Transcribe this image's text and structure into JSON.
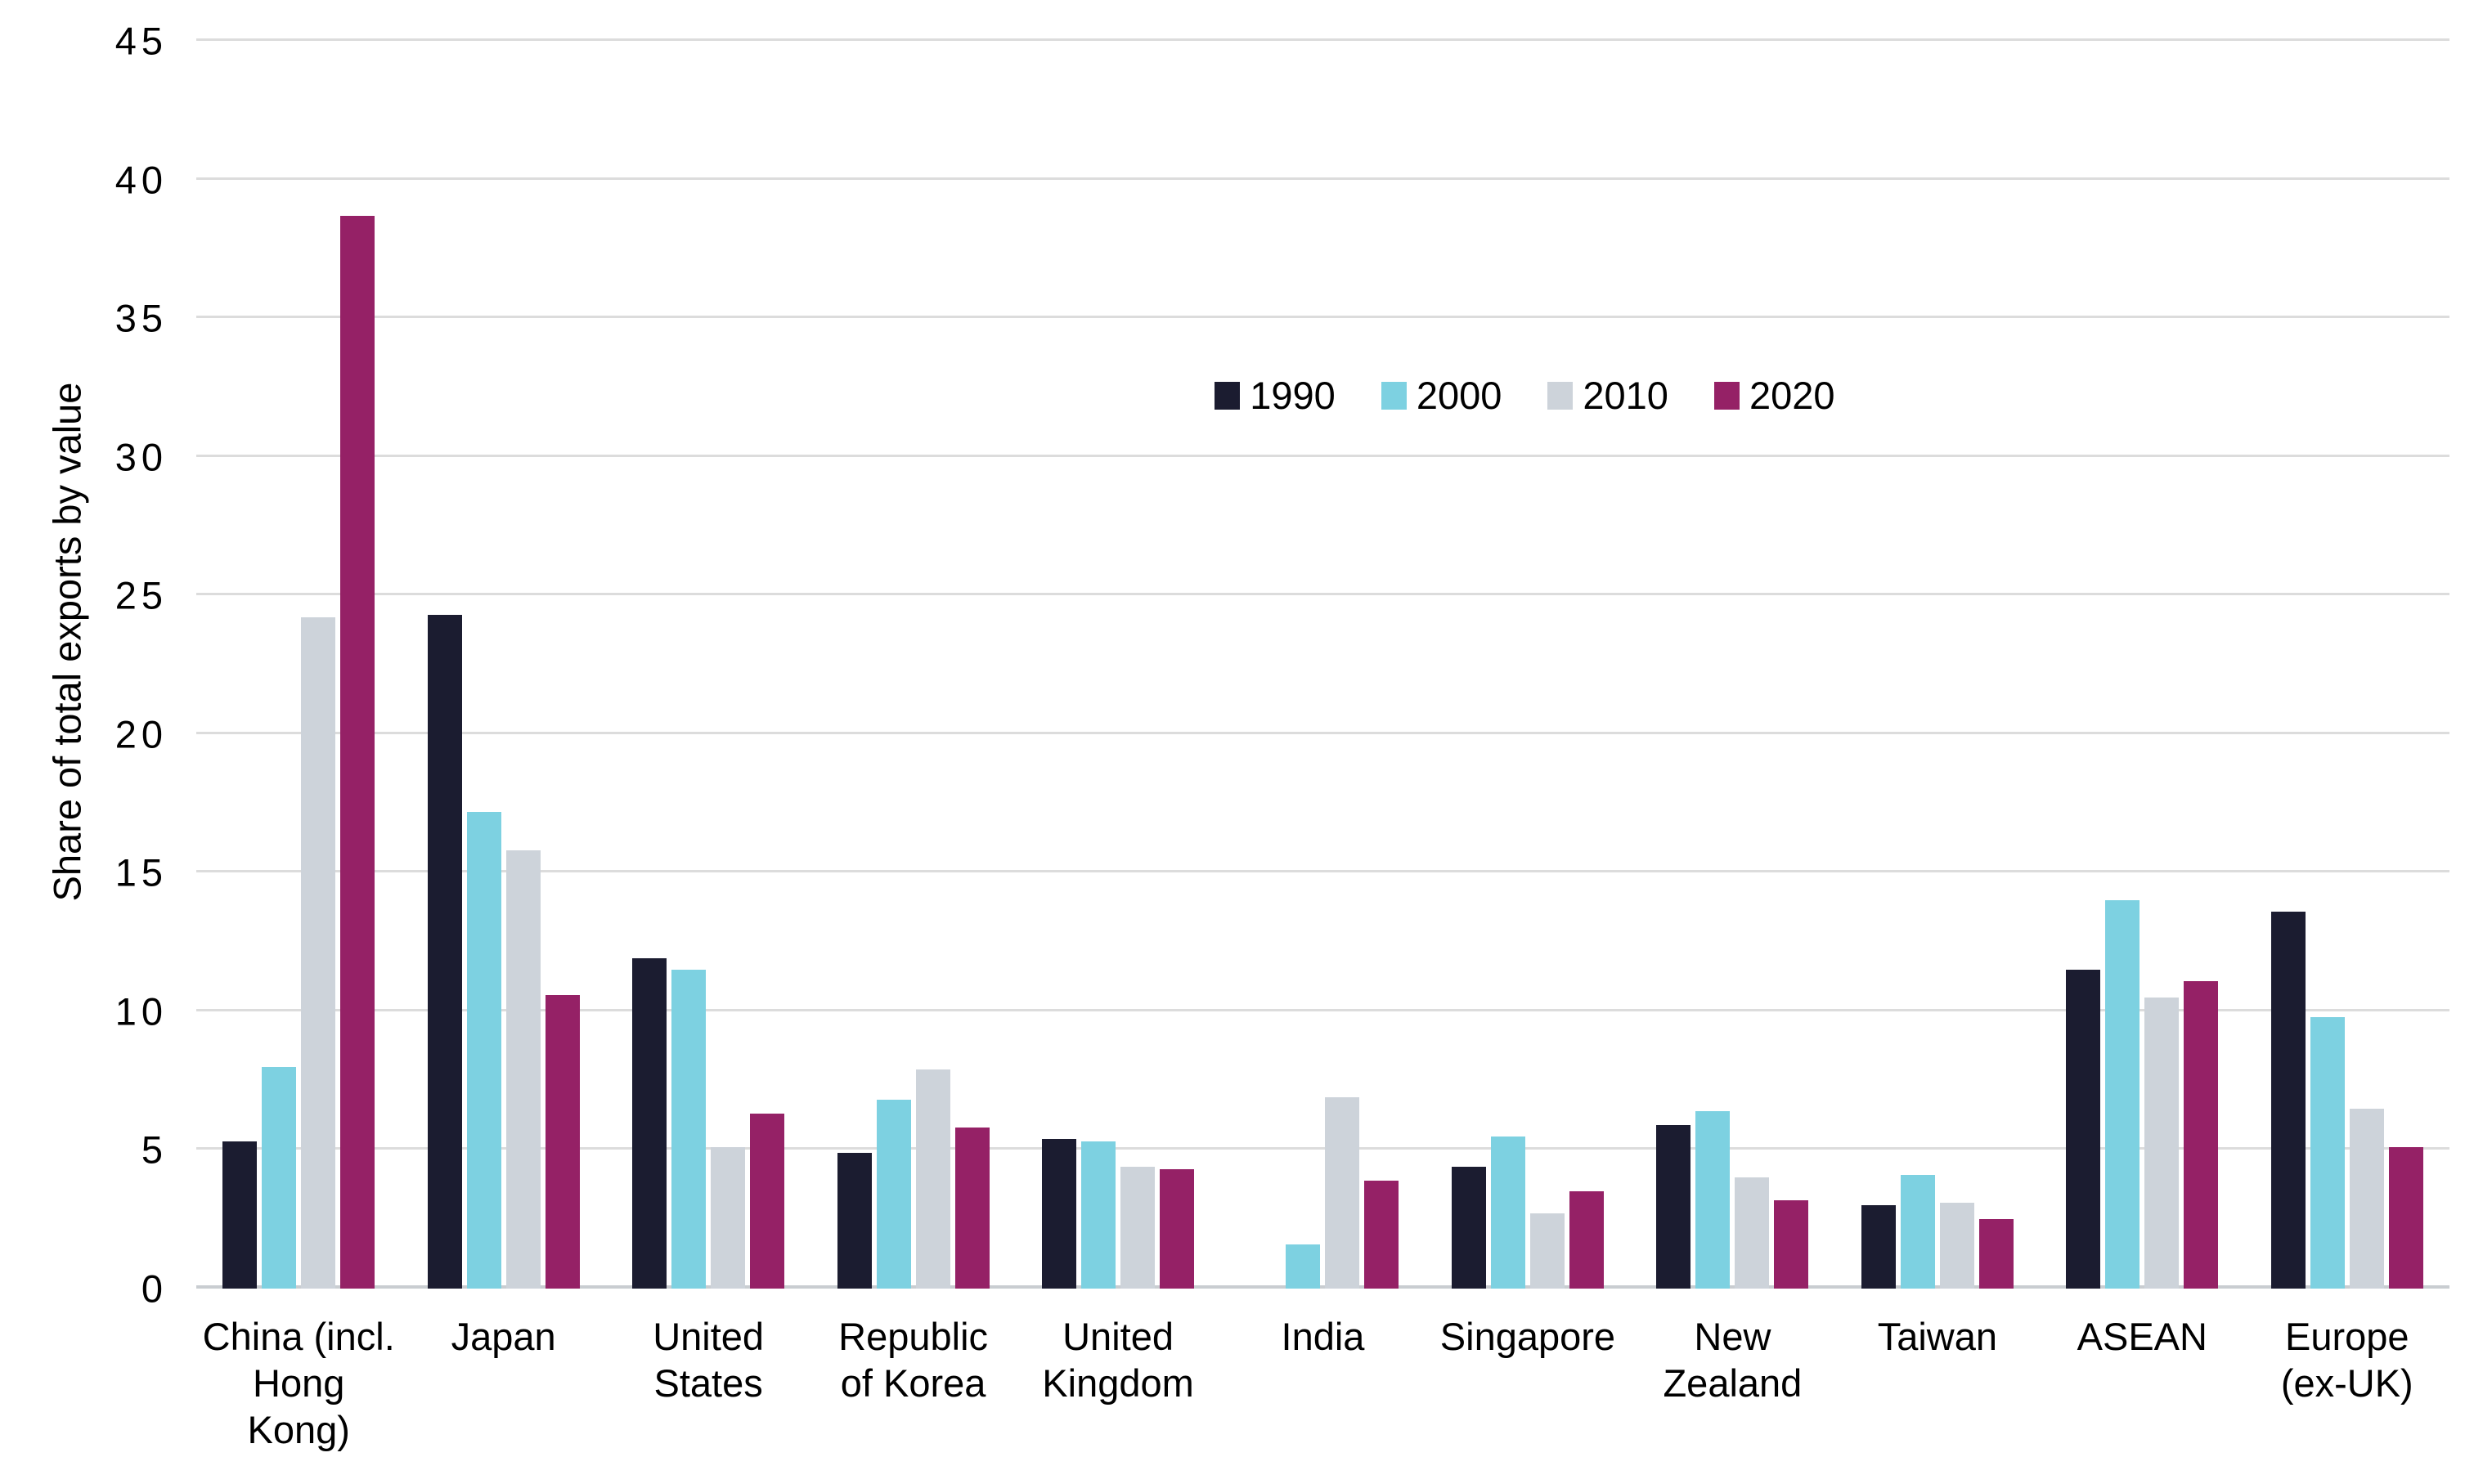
{
  "chart_data": {
    "type": "bar",
    "title": "",
    "xlabel": "",
    "ylabel": "Share of total exports by value",
    "ylim": [
      0,
      45
    ],
    "yticks": [
      0,
      5,
      10,
      15,
      20,
      25,
      30,
      35,
      40,
      45
    ],
    "grid": true,
    "legend_position": "inside upper-center-right, horizontal row",
    "categories": [
      "China (incl. Hong Kong)",
      "Japan",
      "United States",
      "Republic of Korea",
      "United Kingdom",
      "India",
      "Singapore",
      "New Zealand",
      "Taiwan",
      "ASEAN",
      "Europe (ex-UK)"
    ],
    "category_label_lines": [
      [
        "China (incl.",
        "Hong",
        "Kong)"
      ],
      [
        "Japan"
      ],
      [
        "United",
        "States"
      ],
      [
        "Republic",
        "of Korea"
      ],
      [
        "United",
        "Kingdom"
      ],
      [
        "India"
      ],
      [
        "Singapore"
      ],
      [
        "New",
        "Zealand"
      ],
      [
        "Taiwan"
      ],
      [
        "ASEAN"
      ],
      [
        "Europe",
        "(ex-UK)"
      ]
    ],
    "series": [
      {
        "name": "1990",
        "color": "#1b1c30",
        "values": [
          5.3,
          24.3,
          11.9,
          4.9,
          5.4,
          0,
          4.4,
          5.9,
          3.0,
          11.5,
          13.6
        ]
      },
      {
        "name": "2000",
        "color": "#7dd1e1",
        "values": [
          8.0,
          17.2,
          11.5,
          6.8,
          5.3,
          1.6,
          5.5,
          6.4,
          4.1,
          14.0,
          9.8
        ]
      },
      {
        "name": "2010",
        "color": "#cdd3da",
        "values": [
          24.2,
          15.8,
          5.1,
          7.9,
          4.4,
          6.9,
          2.7,
          4.0,
          3.1,
          10.5,
          6.5
        ]
      },
      {
        "name": "2020",
        "color": "#952166",
        "values": [
          38.7,
          10.6,
          6.3,
          5.8,
          4.3,
          3.9,
          3.5,
          3.2,
          2.5,
          11.1,
          5.1
        ]
      }
    ],
    "colors": {
      "gridline": "#dcdcdc",
      "baseline": "#c9cdd1",
      "text": "#000000",
      "background": "#ffffff"
    }
  }
}
